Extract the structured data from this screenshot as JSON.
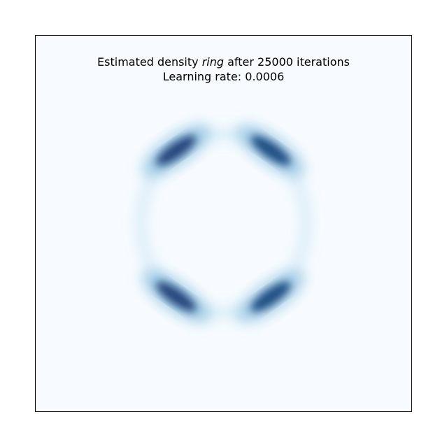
{
  "chart_data": {
    "type": "heatmap",
    "title": {
      "prefix": "Estimated density ",
      "dataset": "ring",
      "suffix": " after 25000 iterations"
    },
    "subtitle": {
      "label": "Learning rate: ",
      "value": "0.0006"
    },
    "xlabel": "",
    "ylabel": "",
    "axes_ticks_visible": false,
    "grid": false,
    "colormap": "Blues",
    "colors": {
      "background": "#f7fbff",
      "mid": "#6baed6",
      "peak": "#08306b",
      "frame": "#000000"
    },
    "ring": {
      "center": [
        0.0,
        0.0
      ],
      "radius": 0.44,
      "density_modes": [
        {
          "angle_deg": 125,
          "density": 1.0
        },
        {
          "angle_deg": 55,
          "density": 0.95
        },
        {
          "angle_deg": -55,
          "density": 0.95
        },
        {
          "angle_deg": -125,
          "density": 1.0
        }
      ],
      "background_ring_density": 0.12
    }
  }
}
